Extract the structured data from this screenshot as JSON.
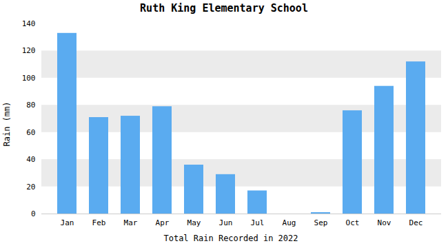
{
  "chart_data": {
    "type": "bar",
    "title": "Ruth King Elementary School",
    "xlabel": "Total Rain Recorded in 2022",
    "ylabel": "Rain (mm)",
    "categories": [
      "Jan",
      "Feb",
      "Mar",
      "Apr",
      "May",
      "Jun",
      "Jul",
      "Aug",
      "Sep",
      "Oct",
      "Nov",
      "Dec"
    ],
    "values": [
      133,
      71,
      72,
      79,
      36,
      29,
      17,
      0,
      1,
      76,
      94,
      112
    ],
    "color": "#5aabf0",
    "ylim": [
      0,
      140
    ],
    "yticks": [
      0,
      20,
      40,
      60,
      80,
      100,
      120,
      140
    ],
    "grid": true
  }
}
